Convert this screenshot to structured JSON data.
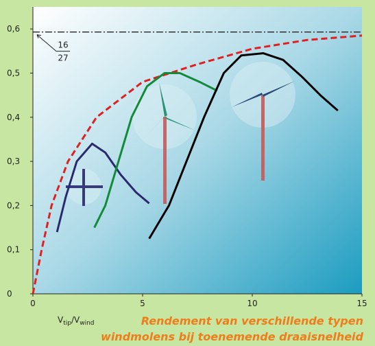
{
  "chart_data": {
    "type": "line",
    "xlim": [
      0,
      15
    ],
    "xticks": [
      0,
      5,
      10,
      15
    ],
    "ylim": [
      0,
      0.65
    ],
    "yticks": [
      {
        "value": 0,
        "label": "0"
      },
      {
        "value": 0.1,
        "label": "0,1"
      },
      {
        "value": 0.2,
        "label": "0,2"
      },
      {
        "value": 0.3,
        "label": "0,3"
      },
      {
        "value": 0.4,
        "label": "0,4"
      },
      {
        "value": 0.5,
        "label": "0,5"
      },
      {
        "value": 0.6,
        "label": "0,6"
      }
    ],
    "x_label_parts": [
      "V",
      "tip",
      "/V",
      "wind"
    ],
    "caption": [
      "Rendement van verschillende typen",
      "windmolens bij toenemende draaisnelheid"
    ],
    "betz": {
      "value": 0.593,
      "numerator": "16",
      "denominator": "27",
      "color": "#111111"
    },
    "series": [
      {
        "color": "#e02020",
        "dashed": true,
        "x": [
          0,
          0.4,
          0.85,
          1.6,
          2.9,
          5,
          7.5,
          10,
          12.5,
          15
        ],
        "values": [
          0,
          0.1,
          0.2,
          0.3,
          0.4,
          0.48,
          0.52,
          0.555,
          0.575,
          0.585
        ]
      },
      {
        "color": "#2a2a6e",
        "dashed": false,
        "x": [
          1.1,
          1.5,
          2,
          2.7,
          3.3,
          4,
          4.7,
          5.3
        ],
        "values": [
          0.14,
          0.22,
          0.3,
          0.34,
          0.32,
          0.27,
          0.23,
          0.205
        ]
      },
      {
        "color": "#138a3a",
        "dashed": false,
        "x": [
          2.8,
          3.3,
          3.9,
          4.5,
          5.2,
          6,
          6.7,
          7.6,
          8.4
        ],
        "values": [
          0.15,
          0.2,
          0.3,
          0.4,
          0.47,
          0.5,
          0.5,
          0.48,
          0.46
        ]
      },
      {
        "color": "#000000",
        "dashed": false,
        "x": [
          5.3,
          6.2,
          7,
          7.8,
          8.7,
          9.5,
          10.5,
          11.4,
          12.3,
          13.1,
          13.9
        ],
        "values": [
          0.125,
          0.2,
          0.3,
          0.4,
          0.5,
          0.54,
          0.545,
          0.53,
          0.49,
          0.45,
          0.415
        ]
      }
    ]
  }
}
